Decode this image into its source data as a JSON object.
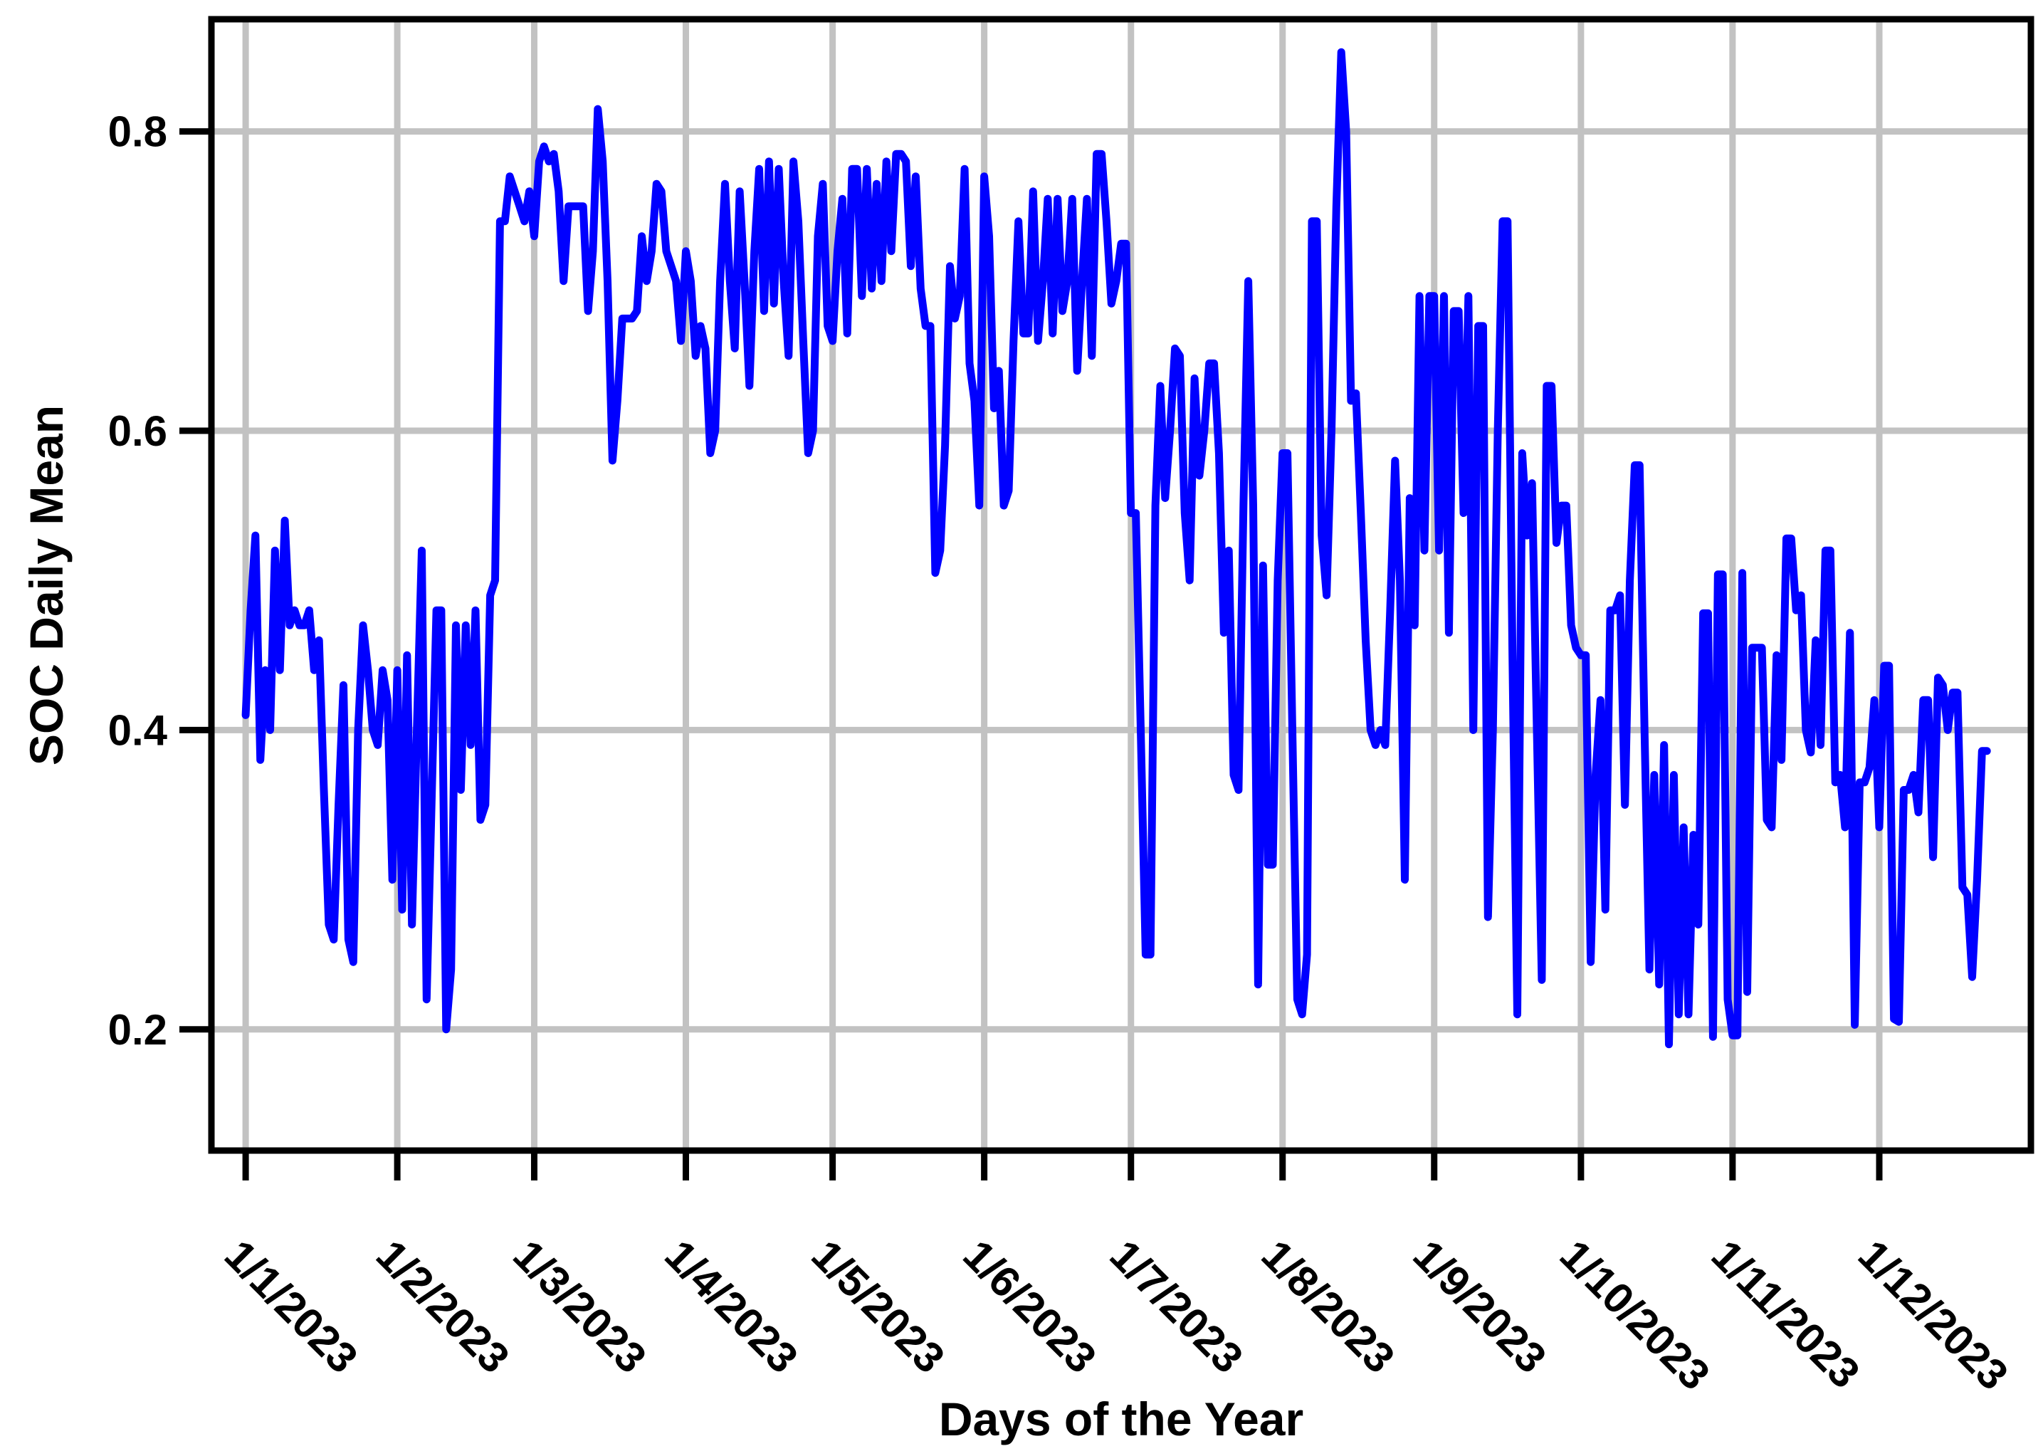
{
  "figure": {
    "background": "#ffffff",
    "border_color": "#000000",
    "grid_color": "#c2c2c2",
    "tick_color": "#000000"
  },
  "chart_data": {
    "type": "line",
    "title": "",
    "xlabel": "Days of the Year",
    "ylabel": "SOC Daily Mean",
    "legend": "none",
    "grid": "on",
    "line_color": "#0000ff",
    "x_tick_labels": [
      "1/1/2023",
      "1/2/2023",
      "1/3/2023",
      "1/4/2023",
      "1/5/2023",
      "1/6/2023",
      "1/7/2023",
      "1/8/2023",
      "1/9/2023",
      "1/10/2023",
      "1/11/2023",
      "1/12/2023"
    ],
    "x_tick_days": [
      1,
      32,
      60,
      91,
      121,
      152,
      182,
      213,
      244,
      274,
      305,
      335
    ],
    "y_tick_labels": [
      "0.8",
      "0.6",
      "0.4",
      "0.2"
    ],
    "y_tick_values": [
      0.8,
      0.6,
      0.4,
      0.2
    ],
    "xlim_days": [
      -6,
      366
    ],
    "ylim": [
      0.119,
      0.875
    ],
    "x_start_day": 1,
    "series": [
      {
        "name": "SOC Daily Mean",
        "values": [
          0.41,
          0.48,
          0.53,
          0.38,
          0.44,
          0.4,
          0.52,
          0.44,
          0.54,
          0.47,
          0.48,
          0.47,
          0.47,
          0.48,
          0.44,
          0.46,
          0.36,
          0.27,
          0.26,
          0.35,
          0.43,
          0.26,
          0.245,
          0.4,
          0.47,
          0.44,
          0.4,
          0.39,
          0.44,
          0.42,
          0.3,
          0.44,
          0.28,
          0.45,
          0.27,
          0.4,
          0.52,
          0.22,
          0.35,
          0.48,
          0.48,
          0.2,
          0.24,
          0.47,
          0.36,
          0.47,
          0.39,
          0.48,
          0.34,
          0.35,
          0.49,
          0.5,
          0.74,
          0.74,
          0.77,
          0.76,
          0.75,
          0.74,
          0.76,
          0.73,
          0.78,
          0.79,
          0.78,
          0.785,
          0.76,
          0.7,
          0.75,
          0.75,
          0.75,
          0.75,
          0.68,
          0.72,
          0.815,
          0.78,
          0.7,
          0.58,
          0.62,
          0.675,
          0.675,
          0.675,
          0.68,
          0.73,
          0.7,
          0.72,
          0.765,
          0.76,
          0.72,
          0.71,
          0.7,
          0.66,
          0.72,
          0.7,
          0.65,
          0.67,
          0.655,
          0.585,
          0.6,
          0.7,
          0.765,
          0.7,
          0.655,
          0.76,
          0.7,
          0.63,
          0.72,
          0.775,
          0.68,
          0.78,
          0.685,
          0.775,
          0.7,
          0.65,
          0.78,
          0.74,
          0.66,
          0.585,
          0.6,
          0.73,
          0.765,
          0.67,
          0.66,
          0.72,
          0.755,
          0.665,
          0.775,
          0.775,
          0.69,
          0.775,
          0.695,
          0.765,
          0.7,
          0.78,
          0.72,
          0.785,
          0.785,
          0.78,
          0.71,
          0.77,
          0.695,
          0.67,
          0.67,
          0.505,
          0.52,
          0.59,
          0.71,
          0.675,
          0.69,
          0.775,
          0.645,
          0.62,
          0.55,
          0.77,
          0.73,
          0.615,
          0.64,
          0.55,
          0.56,
          0.66,
          0.74,
          0.665,
          0.665,
          0.76,
          0.66,
          0.7,
          0.755,
          0.665,
          0.755,
          0.68,
          0.7,
          0.755,
          0.64,
          0.7,
          0.755,
          0.65,
          0.785,
          0.785,
          0.74,
          0.685,
          0.7,
          0.725,
          0.725,
          0.545,
          0.545,
          0.4,
          0.25,
          0.25,
          0.55,
          0.63,
          0.555,
          0.6,
          0.655,
          0.65,
          0.545,
          0.5,
          0.635,
          0.57,
          0.6,
          0.645,
          0.645,
          0.585,
          0.465,
          0.52,
          0.37,
          0.36,
          0.55,
          0.7,
          0.55,
          0.23,
          0.51,
          0.31,
          0.31,
          0.5,
          0.585,
          0.585,
          0.4,
          0.22,
          0.21,
          0.25,
          0.74,
          0.74,
          0.53,
          0.49,
          0.6,
          0.75,
          0.853,
          0.8,
          0.62,
          0.625,
          0.545,
          0.46,
          0.4,
          0.39,
          0.4,
          0.39,
          0.48,
          0.58,
          0.5,
          0.3,
          0.555,
          0.47,
          0.69,
          0.52,
          0.69,
          0.69,
          0.52,
          0.69,
          0.465,
          0.68,
          0.68,
          0.545,
          0.69,
          0.4,
          0.67,
          0.67,
          0.275,
          0.4,
          0.6,
          0.74,
          0.74,
          0.45,
          0.21,
          0.585,
          0.53,
          0.565,
          0.4,
          0.233,
          0.63,
          0.63,
          0.525,
          0.55,
          0.55,
          0.47,
          0.455,
          0.45,
          0.45,
          0.245,
          0.37,
          0.42,
          0.28,
          0.48,
          0.48,
          0.49,
          0.35,
          0.5,
          0.577,
          0.577,
          0.4,
          0.24,
          0.37,
          0.23,
          0.39,
          0.19,
          0.37,
          0.21,
          0.335,
          0.21,
          0.33,
          0.27,
          0.478,
          0.478,
          0.195,
          0.504,
          0.504,
          0.22,
          0.196,
          0.196,
          0.505,
          0.225,
          0.455,
          0.455,
          0.455,
          0.34,
          0.335,
          0.45,
          0.38,
          0.528,
          0.528,
          0.48,
          0.49,
          0.4,
          0.385,
          0.46,
          0.39,
          0.52,
          0.52,
          0.365,
          0.37,
          0.335,
          0.465,
          0.203,
          0.365,
          0.365,
          0.375,
          0.42,
          0.335,
          0.443,
          0.443,
          0.207,
          0.205,
          0.36,
          0.36,
          0.37,
          0.345,
          0.42,
          0.42,
          0.315,
          0.435,
          0.43,
          0.4,
          0.425,
          0.425,
          0.295,
          0.29,
          0.235,
          0.3,
          0.386,
          0.386
        ]
      }
    ]
  }
}
